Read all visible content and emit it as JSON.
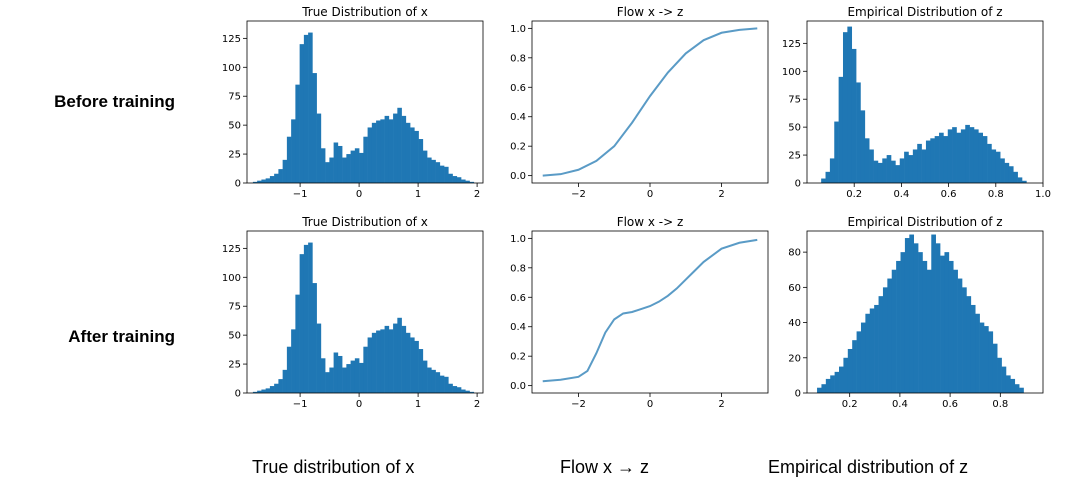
{
  "row_labels": [
    "Before training",
    "After training"
  ],
  "column_captions": [
    "True distribution of x",
    "Flow x → z",
    "Empirical distribution of z"
  ],
  "colors": {
    "bar": "#1f77b4",
    "line": "#5a9bc6",
    "axis": "#000000"
  },
  "chart_data": [
    {
      "id": "before-true-x",
      "type": "bar",
      "title": "True Distribution of x",
      "xlim": [
        -1.9,
        2.1
      ],
      "ylim": [
        0,
        140
      ],
      "xticks": [
        -1,
        0,
        1,
        2
      ],
      "xtick_labels": [
        "−1",
        "0",
        "1",
        "2"
      ],
      "yticks": [
        0,
        25,
        50,
        75,
        100,
        125
      ],
      "ytick_labels": [
        "0",
        "25",
        "50",
        "75",
        "100",
        "125"
      ],
      "bin_start": -1.8,
      "bin_width": 0.072,
      "values": [
        1,
        2,
        3,
        4,
        6,
        8,
        12,
        20,
        40,
        55,
        85,
        120,
        128,
        130,
        95,
        60,
        30,
        18,
        22,
        35,
        32,
        22,
        25,
        28,
        30,
        26,
        40,
        48,
        52,
        54,
        55,
        58,
        55,
        60,
        65,
        58,
        52,
        48,
        45,
        38,
        28,
        22,
        20,
        18,
        15,
        14,
        8,
        6,
        5,
        3,
        2,
        1
      ]
    },
    {
      "id": "before-flow",
      "type": "line",
      "title": "Flow x -> z",
      "xlim": [
        -3.3,
        3.3
      ],
      "ylim": [
        -0.05,
        1.05
      ],
      "xticks": [
        -2,
        0,
        2
      ],
      "xtick_labels": [
        "−2",
        "0",
        "2"
      ],
      "yticks": [
        0.0,
        0.2,
        0.4,
        0.6,
        0.8,
        1.0
      ],
      "ytick_labels": [
        "0.0",
        "0.2",
        "0.4",
        "0.6",
        "0.8",
        "1.0"
      ],
      "x": [
        -3.0,
        -2.5,
        -2.0,
        -1.5,
        -1.0,
        -0.5,
        0.0,
        0.5,
        1.0,
        1.5,
        2.0,
        2.5,
        3.0
      ],
      "y": [
        0.0,
        0.01,
        0.04,
        0.1,
        0.2,
        0.36,
        0.54,
        0.7,
        0.83,
        0.92,
        0.97,
        0.99,
        1.0
      ]
    },
    {
      "id": "before-empirical-z",
      "type": "bar",
      "title": "Empirical Distribution of z",
      "xlim": [
        0.0,
        1.0
      ],
      "ylim": [
        0,
        145
      ],
      "xticks": [
        0.2,
        0.4,
        0.6,
        0.8,
        1.0
      ],
      "xtick_labels": [
        "0.2",
        "0.4",
        "0.6",
        "0.8",
        "1.0"
      ],
      "yticks": [
        0,
        25,
        50,
        75,
        100,
        125
      ],
      "ytick_labels": [
        "0",
        "25",
        "50",
        "75",
        "100",
        "125"
      ],
      "bin_start": 0.06,
      "bin_width": 0.0185,
      "values": [
        4,
        10,
        22,
        55,
        95,
        135,
        140,
        120,
        90,
        65,
        40,
        30,
        20,
        18,
        22,
        25,
        20,
        16,
        22,
        28,
        25,
        30,
        35,
        30,
        38,
        40,
        42,
        45,
        42,
        48,
        50,
        45,
        48,
        52,
        50,
        48,
        45,
        42,
        35,
        30,
        28,
        22,
        18,
        15,
        10,
        5,
        2
      ]
    },
    {
      "id": "after-true-x",
      "type": "bar",
      "title": "True Distribution of x",
      "xlim": [
        -1.9,
        2.1
      ],
      "ylim": [
        0,
        140
      ],
      "xticks": [
        -1,
        0,
        1,
        2
      ],
      "xtick_labels": [
        "−1",
        "0",
        "1",
        "2"
      ],
      "yticks": [
        0,
        25,
        50,
        75,
        100,
        125
      ],
      "ytick_labels": [
        "0",
        "25",
        "50",
        "75",
        "100",
        "125"
      ],
      "bin_start": -1.8,
      "bin_width": 0.072,
      "values": [
        1,
        2,
        3,
        4,
        6,
        8,
        12,
        20,
        40,
        55,
        85,
        120,
        128,
        130,
        95,
        60,
        30,
        18,
        22,
        35,
        32,
        22,
        25,
        28,
        30,
        26,
        40,
        48,
        52,
        54,
        55,
        58,
        55,
        60,
        65,
        58,
        52,
        48,
        45,
        38,
        28,
        22,
        20,
        18,
        15,
        14,
        8,
        6,
        5,
        3,
        2,
        1
      ]
    },
    {
      "id": "after-flow",
      "type": "line",
      "title": "Flow x -> z",
      "xlim": [
        -3.3,
        3.3
      ],
      "ylim": [
        -0.05,
        1.05
      ],
      "xticks": [
        -2,
        0,
        2
      ],
      "xtick_labels": [
        "−2",
        "0",
        "2"
      ],
      "yticks": [
        0.0,
        0.2,
        0.4,
        0.6,
        0.8,
        1.0
      ],
      "ytick_labels": [
        "0.0",
        "0.2",
        "0.4",
        "0.6",
        "0.8",
        "1.0"
      ],
      "x": [
        -3.0,
        -2.5,
        -2.0,
        -1.75,
        -1.5,
        -1.25,
        -1.0,
        -0.75,
        -0.5,
        -0.25,
        0.0,
        0.25,
        0.5,
        0.75,
        1.0,
        1.25,
        1.5,
        2.0,
        2.5,
        3.0
      ],
      "y": [
        0.03,
        0.04,
        0.06,
        0.1,
        0.22,
        0.36,
        0.45,
        0.49,
        0.5,
        0.52,
        0.54,
        0.57,
        0.61,
        0.66,
        0.72,
        0.78,
        0.84,
        0.93,
        0.97,
        0.99
      ]
    },
    {
      "id": "after-empirical-z",
      "type": "bar",
      "title": "Empirical Distribution of z",
      "xlim": [
        0.03,
        0.97
      ],
      "ylim": [
        0,
        92
      ],
      "xticks": [
        0.2,
        0.4,
        0.6,
        0.8
      ],
      "xtick_labels": [
        "0.2",
        "0.4",
        "0.6",
        "0.8"
      ],
      "yticks": [
        0,
        20,
        40,
        60,
        80
      ],
      "ytick_labels": [
        "0",
        "20",
        "40",
        "60",
        "80"
      ],
      "bin_start": 0.07,
      "bin_width": 0.0175,
      "values": [
        3,
        5,
        8,
        10,
        12,
        15,
        20,
        25,
        30,
        35,
        40,
        45,
        48,
        50,
        55,
        60,
        65,
        70,
        75,
        80,
        88,
        90,
        85,
        80,
        75,
        70,
        90,
        85,
        78,
        80,
        75,
        70,
        65,
        60,
        55,
        50,
        45,
        40,
        38,
        35,
        28,
        20,
        15,
        10,
        8,
        5,
        3
      ]
    }
  ]
}
